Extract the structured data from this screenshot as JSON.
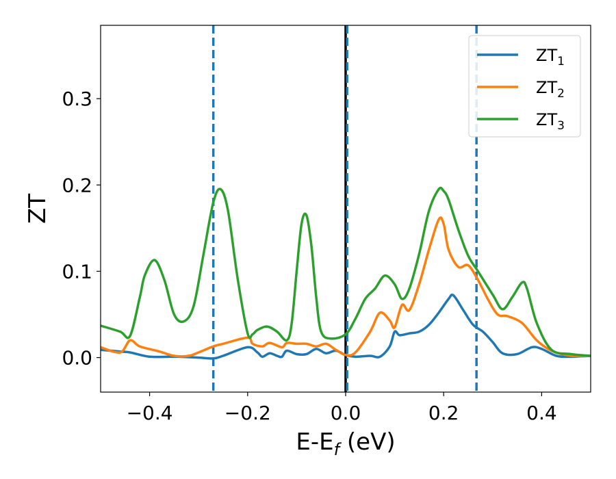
{
  "chart_data": {
    "type": "line",
    "xlabel_main": "E-E",
    "xlabel_sub": "f",
    "xlabel_unit": " (eV)",
    "ylabel": "ZT",
    "xlim": [
      -0.5,
      0.5
    ],
    "ylim": [
      -0.04,
      0.385
    ],
    "xticks": [
      -0.4,
      -0.2,
      0.0,
      0.2,
      0.4
    ],
    "xtick_labels": [
      "−0.4",
      "−0.2",
      "0.0",
      "0.2",
      "0.4"
    ],
    "yticks": [
      0.0,
      0.1,
      0.2,
      0.3
    ],
    "ytick_labels": [
      "0.0",
      "0.1",
      "0.2",
      "0.3"
    ],
    "legend_position": "top-right",
    "vlines": [
      {
        "x": -0.27,
        "color": "#1f77b4",
        "style": "dashed"
      },
      {
        "x": 0.0,
        "color": "#000000",
        "style": "solid"
      },
      {
        "x": 0.003,
        "color": "#1f77b4",
        "style": "dashed"
      },
      {
        "x": 0.267,
        "color": "#1f77b4",
        "style": "dashed"
      }
    ],
    "series": [
      {
        "name": "ZT",
        "subscript": "1",
        "color": "#1f77b4",
        "x": [
          -0.5,
          -0.46,
          -0.44,
          -0.4,
          -0.35,
          -0.3,
          -0.27,
          -0.25,
          -0.2,
          -0.18,
          -0.17,
          -0.155,
          -0.14,
          -0.13,
          -0.12,
          -0.1,
          -0.08,
          -0.06,
          -0.04,
          -0.02,
          0.0,
          0.02,
          0.05,
          0.07,
          0.09,
          0.1,
          0.11,
          0.13,
          0.15,
          0.17,
          0.19,
          0.21,
          0.22,
          0.24,
          0.26,
          0.28,
          0.3,
          0.32,
          0.35,
          0.38,
          0.4,
          0.43,
          0.46,
          0.5
        ],
        "y": [
          0.009,
          0.007,
          0.006,
          0.001,
          0.001,
          0.0,
          -0.001,
          0.002,
          0.012,
          0.006,
          0.001,
          0.005,
          0.002,
          0.001,
          0.008,
          0.004,
          0.004,
          0.01,
          0.005,
          0.008,
          0.003,
          0.001,
          0.002,
          0.001,
          0.013,
          0.03,
          0.026,
          0.028,
          0.03,
          0.038,
          0.052,
          0.068,
          0.072,
          0.055,
          0.038,
          0.03,
          0.018,
          0.005,
          0.004,
          0.012,
          0.01,
          0.002,
          0.001,
          0.002
        ]
      },
      {
        "name": "ZT",
        "subscript": "2",
        "color": "#ff7f0e",
        "x": [
          -0.5,
          -0.46,
          -0.44,
          -0.42,
          -0.38,
          -0.35,
          -0.32,
          -0.3,
          -0.27,
          -0.25,
          -0.2,
          -0.19,
          -0.17,
          -0.155,
          -0.13,
          -0.12,
          -0.1,
          -0.08,
          -0.06,
          -0.04,
          -0.02,
          0.0,
          0.02,
          0.05,
          0.07,
          0.09,
          0.1,
          0.115,
          0.13,
          0.15,
          0.17,
          0.19,
          0.2,
          0.21,
          0.23,
          0.25,
          0.27,
          0.29,
          0.31,
          0.33,
          0.36,
          0.39,
          0.42,
          0.46,
          0.5
        ],
        "y": [
          0.012,
          0.006,
          0.02,
          0.013,
          0.007,
          0.002,
          0.002,
          0.006,
          0.013,
          0.016,
          0.023,
          0.016,
          0.013,
          0.017,
          0.012,
          0.017,
          0.016,
          0.016,
          0.013,
          0.016,
          0.009,
          0.003,
          0.006,
          0.03,
          0.052,
          0.043,
          0.035,
          0.061,
          0.055,
          0.085,
          0.125,
          0.16,
          0.155,
          0.125,
          0.105,
          0.107,
          0.09,
          0.068,
          0.05,
          0.048,
          0.04,
          0.02,
          0.008,
          0.002,
          0.002
        ]
      },
      {
        "name": "ZT",
        "subscript": "3",
        "color": "#2ca02c",
        "x": [
          -0.5,
          -0.46,
          -0.44,
          -0.42,
          -0.41,
          -0.39,
          -0.37,
          -0.35,
          -0.33,
          -0.31,
          -0.29,
          -0.27,
          -0.255,
          -0.24,
          -0.22,
          -0.2,
          -0.19,
          -0.18,
          -0.16,
          -0.14,
          -0.12,
          -0.11,
          -0.1,
          -0.09,
          -0.08,
          -0.07,
          -0.06,
          -0.05,
          -0.03,
          0.0,
          0.02,
          0.04,
          0.06,
          0.08,
          0.1,
          0.115,
          0.13,
          0.15,
          0.17,
          0.19,
          0.2,
          0.21,
          0.23,
          0.25,
          0.27,
          0.3,
          0.32,
          0.34,
          0.36,
          0.37,
          0.39,
          0.42,
          0.46,
          0.5
        ],
        "y": [
          0.037,
          0.03,
          0.025,
          0.07,
          0.095,
          0.113,
          0.09,
          0.05,
          0.042,
          0.06,
          0.12,
          0.18,
          0.195,
          0.17,
          0.09,
          0.028,
          0.027,
          0.032,
          0.036,
          0.03,
          0.02,
          0.04,
          0.1,
          0.155,
          0.165,
          0.13,
          0.07,
          0.03,
          0.022,
          0.027,
          0.045,
          0.068,
          0.08,
          0.095,
          0.085,
          0.068,
          0.08,
          0.12,
          0.17,
          0.195,
          0.193,
          0.183,
          0.148,
          0.118,
          0.1,
          0.073,
          0.056,
          0.07,
          0.087,
          0.08,
          0.04,
          0.009,
          0.004,
          0.002
        ]
      }
    ]
  }
}
